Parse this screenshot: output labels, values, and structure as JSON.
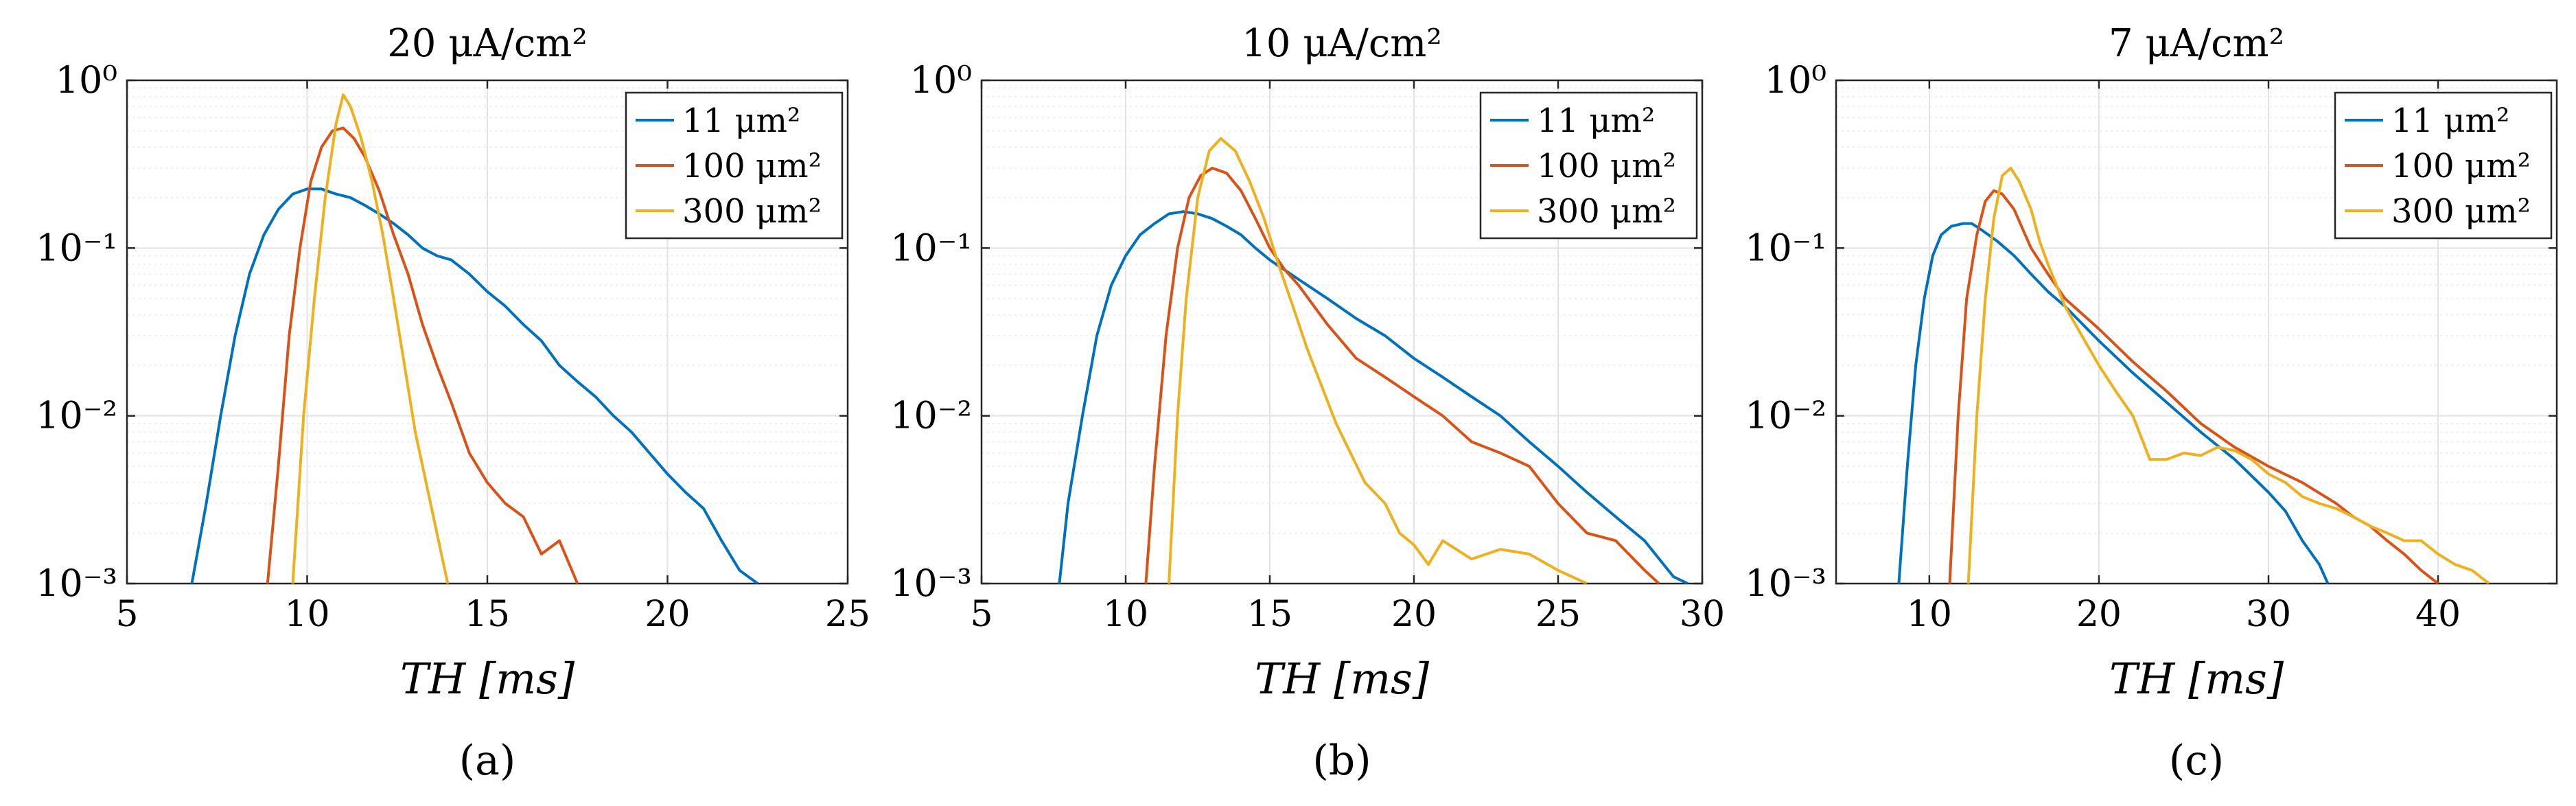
{
  "colors": {
    "blue": "#0072BD",
    "red": "#D95319",
    "yellow": "#EDB120",
    "grid": "#e3e3e3",
    "axis": "#262626"
  },
  "chart_data": [
    {
      "panel": "(a)",
      "type": "line",
      "title": "20 μA/cm²",
      "xlabel": "TH [ms]",
      "ylabel": "",
      "xlim": [
        5,
        25
      ],
      "ylim": [
        0.001,
        1
      ],
      "yscale": "log",
      "grid": true,
      "legend": "top-right",
      "xticks": [
        5,
        10,
        15,
        20,
        25
      ],
      "yticks": [
        "10⁰",
        "10⁻¹",
        "10⁻²",
        "10⁻³"
      ],
      "series": [
        {
          "name": "11 μm²",
          "color": "#0072BD",
          "points": [
            [
              6.8,
              0.001
            ],
            [
              7.2,
              0.003
            ],
            [
              7.6,
              0.01
            ],
            [
              8,
              0.03
            ],
            [
              8.4,
              0.07
            ],
            [
              8.8,
              0.12
            ],
            [
              9.2,
              0.17
            ],
            [
              9.6,
              0.21
            ],
            [
              10,
              0.225
            ],
            [
              10.4,
              0.225
            ],
            [
              10.8,
              0.21
            ],
            [
              11.2,
              0.2
            ],
            [
              11.6,
              0.18
            ],
            [
              12,
              0.16
            ],
            [
              12.4,
              0.14
            ],
            [
              12.8,
              0.12
            ],
            [
              13.2,
              0.1
            ],
            [
              13.6,
              0.09
            ],
            [
              14,
              0.085
            ],
            [
              14.5,
              0.07
            ],
            [
              15,
              0.055
            ],
            [
              15.5,
              0.045
            ],
            [
              16,
              0.035
            ],
            [
              16.5,
              0.028
            ],
            [
              17,
              0.02
            ],
            [
              17.5,
              0.016
            ],
            [
              18,
              0.013
            ],
            [
              18.5,
              0.01
            ],
            [
              19,
              0.008
            ],
            [
              19.5,
              0.006
            ],
            [
              20,
              0.0045
            ],
            [
              20.5,
              0.0035
            ],
            [
              21,
              0.0028
            ],
            [
              21.5,
              0.0018
            ],
            [
              22,
              0.0012
            ],
            [
              22.5,
              0.001
            ]
          ]
        },
        {
          "name": "100 μm²",
          "color": "#D95319",
          "points": [
            [
              8.9,
              0.001
            ],
            [
              9.2,
              0.005
            ],
            [
              9.5,
              0.03
            ],
            [
              9.8,
              0.1
            ],
            [
              10.1,
              0.25
            ],
            [
              10.4,
              0.4
            ],
            [
              10.7,
              0.5
            ],
            [
              11,
              0.52
            ],
            [
              11.3,
              0.45
            ],
            [
              11.6,
              0.35
            ],
            [
              12,
              0.22
            ],
            [
              12.4,
              0.12
            ],
            [
              12.8,
              0.07
            ],
            [
              13.2,
              0.035
            ],
            [
              13.6,
              0.02
            ],
            [
              14,
              0.012
            ],
            [
              14.5,
              0.006
            ],
            [
              15,
              0.004
            ],
            [
              15.5,
              0.003
            ],
            [
              16,
              0.0025
            ],
            [
              16.5,
              0.0015
            ],
            [
              17,
              0.0018
            ],
            [
              17.5,
              0.001
            ]
          ]
        },
        {
          "name": "300 μm²",
          "color": "#EDB120",
          "points": [
            [
              9.6,
              0.001
            ],
            [
              9.9,
              0.01
            ],
            [
              10.2,
              0.05
            ],
            [
              10.5,
              0.2
            ],
            [
              10.8,
              0.55
            ],
            [
              11,
              0.82
            ],
            [
              11.2,
              0.7
            ],
            [
              11.5,
              0.45
            ],
            [
              11.8,
              0.25
            ],
            [
              12.1,
              0.12
            ],
            [
              12.4,
              0.05
            ],
            [
              12.7,
              0.02
            ],
            [
              13,
              0.008
            ],
            [
              13.3,
              0.004
            ],
            [
              13.6,
              0.002
            ],
            [
              13.9,
              0.001
            ]
          ]
        }
      ]
    },
    {
      "panel": "(b)",
      "type": "line",
      "title": "10 μA/cm²",
      "xlabel": "TH [ms]",
      "ylabel": "",
      "xlim": [
        5,
        30
      ],
      "ylim": [
        0.001,
        1
      ],
      "yscale": "log",
      "grid": true,
      "legend": "top-right",
      "xticks": [
        5,
        10,
        15,
        20,
        25,
        30
      ],
      "yticks": [
        "10⁰",
        "10⁻¹",
        "10⁻²",
        "10⁻³"
      ],
      "series": [
        {
          "name": "11 μm²",
          "color": "#0072BD",
          "points": [
            [
              7.7,
              0.001
            ],
            [
              8,
              0.003
            ],
            [
              8.5,
              0.01
            ],
            [
              9,
              0.03
            ],
            [
              9.5,
              0.06
            ],
            [
              10,
              0.09
            ],
            [
              10.5,
              0.12
            ],
            [
              11,
              0.14
            ],
            [
              11.5,
              0.16
            ],
            [
              12,
              0.165
            ],
            [
              12.5,
              0.16
            ],
            [
              13,
              0.15
            ],
            [
              13.5,
              0.135
            ],
            [
              14,
              0.12
            ],
            [
              14.5,
              0.1
            ],
            [
              15,
              0.085
            ],
            [
              16,
              0.065
            ],
            [
              17,
              0.05
            ],
            [
              18,
              0.038
            ],
            [
              19,
              0.03
            ],
            [
              20,
              0.022
            ],
            [
              21,
              0.017
            ],
            [
              22,
              0.013
            ],
            [
              23,
              0.01
            ],
            [
              24,
              0.007
            ],
            [
              25,
              0.005
            ],
            [
              26,
              0.0035
            ],
            [
              27,
              0.0025
            ],
            [
              28,
              0.0018
            ],
            [
              29,
              0.0011
            ],
            [
              29.5,
              0.001
            ]
          ]
        },
        {
          "name": "100 μm²",
          "color": "#D95319",
          "points": [
            [
              10.7,
              0.001
            ],
            [
              11,
              0.005
            ],
            [
              11.4,
              0.03
            ],
            [
              11.8,
              0.1
            ],
            [
              12.2,
              0.2
            ],
            [
              12.6,
              0.27
            ],
            [
              13,
              0.3
            ],
            [
              13.5,
              0.28
            ],
            [
              14,
              0.22
            ],
            [
              14.5,
              0.15
            ],
            [
              15,
              0.1
            ],
            [
              15.5,
              0.075
            ],
            [
              16,
              0.06
            ],
            [
              17,
              0.035
            ],
            [
              18,
              0.022
            ],
            [
              19,
              0.017
            ],
            [
              20,
              0.013
            ],
            [
              21,
              0.01
            ],
            [
              22,
              0.007
            ],
            [
              23,
              0.006
            ],
            [
              24,
              0.005
            ],
            [
              25,
              0.003
            ],
            [
              26,
              0.002
            ],
            [
              27,
              0.0018
            ],
            [
              28,
              0.0012
            ],
            [
              28.5,
              0.001
            ]
          ]
        },
        {
          "name": "300 μm²",
          "color": "#EDB120",
          "points": [
            [
              11.5,
              0.001
            ],
            [
              11.8,
              0.01
            ],
            [
              12.1,
              0.05
            ],
            [
              12.5,
              0.2
            ],
            [
              12.9,
              0.38
            ],
            [
              13.3,
              0.45
            ],
            [
              13.8,
              0.38
            ],
            [
              14.3,
              0.25
            ],
            [
              14.8,
              0.15
            ],
            [
              15.3,
              0.08
            ],
            [
              15.8,
              0.045
            ],
            [
              16.3,
              0.025
            ],
            [
              16.8,
              0.015
            ],
            [
              17.3,
              0.009
            ],
            [
              17.8,
              0.006
            ],
            [
              18.3,
              0.004
            ],
            [
              19,
              0.003
            ],
            [
              19.5,
              0.002
            ],
            [
              20,
              0.0017
            ],
            [
              20.5,
              0.0013
            ],
            [
              21,
              0.0018
            ],
            [
              22,
              0.0014
            ],
            [
              23,
              0.0016
            ],
            [
              24,
              0.0015
            ],
            [
              25,
              0.0012
            ],
            [
              26,
              0.001
            ]
          ]
        }
      ]
    },
    {
      "panel": "(c)",
      "type": "line",
      "title": "7 μA/cm²",
      "xlabel": "TH [ms]",
      "ylabel": "",
      "xlim": [
        4.5,
        47
      ],
      "ylim": [
        0.001,
        1
      ],
      "yscale": "log",
      "grid": true,
      "legend": "top-right",
      "xticks": [
        10,
        20,
        30,
        40
      ],
      "yticks": [
        "10⁰",
        "10⁻¹",
        "10⁻²",
        "10⁻³"
      ],
      "series": [
        {
          "name": "11 μm²",
          "color": "#0072BD",
          "points": [
            [
              8.2,
              0.001
            ],
            [
              8.7,
              0.005
            ],
            [
              9.2,
              0.02
            ],
            [
              9.7,
              0.05
            ],
            [
              10.2,
              0.09
            ],
            [
              10.7,
              0.12
            ],
            [
              11.3,
              0.135
            ],
            [
              12,
              0.14
            ],
            [
              12.5,
              0.14
            ],
            [
              13,
              0.13
            ],
            [
              14,
              0.11
            ],
            [
              15,
              0.09
            ],
            [
              16,
              0.07
            ],
            [
              17,
              0.055
            ],
            [
              18,
              0.045
            ],
            [
              20,
              0.028
            ],
            [
              22,
              0.018
            ],
            [
              24,
              0.012
            ],
            [
              26,
              0.008
            ],
            [
              28,
              0.0055
            ],
            [
              30,
              0.0035
            ],
            [
              31,
              0.0027
            ],
            [
              32,
              0.0018
            ],
            [
              33,
              0.0013
            ],
            [
              33.5,
              0.001
            ]
          ]
        },
        {
          "name": "100 μm²",
          "color": "#D95319",
          "points": [
            [
              11.2,
              0.001
            ],
            [
              11.7,
              0.01
            ],
            [
              12.2,
              0.05
            ],
            [
              12.8,
              0.12
            ],
            [
              13.3,
              0.19
            ],
            [
              13.8,
              0.22
            ],
            [
              14.3,
              0.21
            ],
            [
              15,
              0.17
            ],
            [
              15.5,
              0.13
            ],
            [
              16,
              0.1
            ],
            [
              17,
              0.07
            ],
            [
              18,
              0.05
            ],
            [
              20,
              0.033
            ],
            [
              22,
              0.021
            ],
            [
              24,
              0.014
            ],
            [
              26,
              0.009
            ],
            [
              28,
              0.0065
            ],
            [
              30,
              0.005
            ],
            [
              32,
              0.004
            ],
            [
              34,
              0.003
            ],
            [
              35,
              0.0025
            ],
            [
              36,
              0.0022
            ],
            [
              37,
              0.0018
            ],
            [
              38,
              0.0015
            ],
            [
              39,
              0.0012
            ],
            [
              40,
              0.001
            ]
          ]
        },
        {
          "name": "300 μm²",
          "color": "#EDB120",
          "points": [
            [
              12.3,
              0.001
            ],
            [
              12.8,
              0.01
            ],
            [
              13.3,
              0.05
            ],
            [
              13.8,
              0.15
            ],
            [
              14.3,
              0.27
            ],
            [
              14.8,
              0.3
            ],
            [
              15.3,
              0.25
            ],
            [
              16,
              0.17
            ],
            [
              16.5,
              0.11
            ],
            [
              17,
              0.08
            ],
            [
              17.5,
              0.06
            ],
            [
              18,
              0.045
            ],
            [
              19,
              0.03
            ],
            [
              20,
              0.02
            ],
            [
              21,
              0.014
            ],
            [
              22,
              0.01
            ],
            [
              23,
              0.0055
            ],
            [
              24,
              0.0055
            ],
            [
              25,
              0.006
            ],
            [
              26,
              0.0058
            ],
            [
              27,
              0.0065
            ],
            [
              28,
              0.0062
            ],
            [
              29,
              0.0055
            ],
            [
              30,
              0.0045
            ],
            [
              31,
              0.004
            ],
            [
              32,
              0.0033
            ],
            [
              33,
              0.003
            ],
            [
              34,
              0.0028
            ],
            [
              35,
              0.0025
            ],
            [
              36,
              0.0022
            ],
            [
              37,
              0.002
            ],
            [
              38,
              0.0018
            ],
            [
              39,
              0.0018
            ],
            [
              40,
              0.0015
            ],
            [
              41,
              0.0013
            ],
            [
              42,
              0.0012
            ],
            [
              43,
              0.001
            ]
          ]
        }
      ]
    }
  ]
}
